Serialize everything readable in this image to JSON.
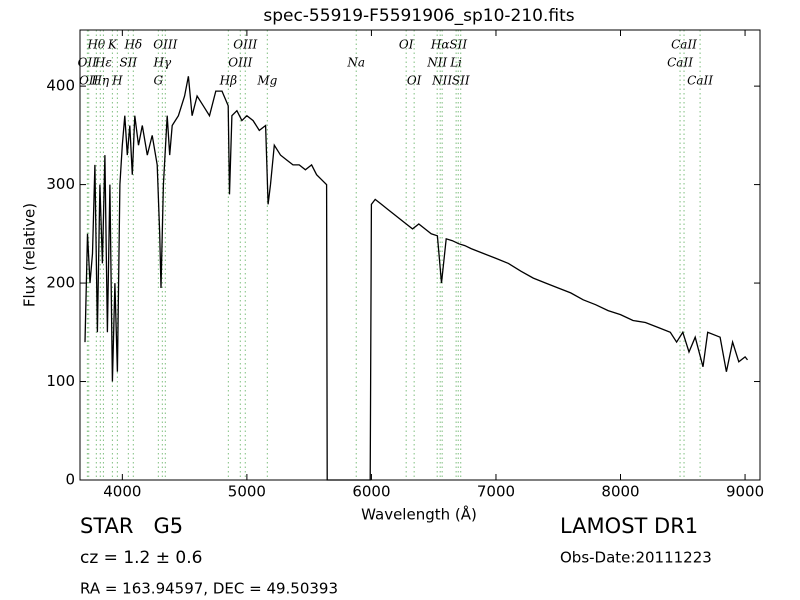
{
  "chart_data": {
    "type": "line",
    "title": "spec-55919-F5591906_sp10-210.fits",
    "x_label": "Wavelength (Å)",
    "y_label": "Flux (relative)",
    "color": "#000000",
    "line_color": "#7fbf7f",
    "xlim": [
      3660,
      9120
    ],
    "ylim": [
      0,
      457
    ],
    "xticks": [
      4000,
      5000,
      6000,
      7000,
      8000,
      9000
    ],
    "yticks": [
      0,
      100,
      200,
      300,
      400
    ],
    "x": [
      3700,
      3720,
      3740,
      3760,
      3780,
      3800,
      3820,
      3840,
      3860,
      3880,
      3900,
      3920,
      3940,
      3960,
      3980,
      4000,
      4020,
      4040,
      4060,
      4080,
      4100,
      4130,
      4160,
      4200,
      4240,
      4280,
      4300,
      4310,
      4330,
      4360,
      4380,
      4400,
      4450,
      4500,
      4530,
      4560,
      4600,
      4650,
      4700,
      4750,
      4800,
      4850,
      4860,
      4880,
      4920,
      4960,
      5000,
      5050,
      5100,
      5150,
      5170,
      5190,
      5220,
      5270,
      5320,
      5370,
      5420,
      5470,
      5520,
      5560,
      5600,
      5640,
      5645,
      5990,
      6000,
      6030,
      6080,
      6130,
      6180,
      6230,
      6280,
      6330,
      6380,
      6430,
      6480,
      6530,
      6563,
      6600,
      6650,
      6700,
      6750,
      6800,
      6900,
      7000,
      7100,
      7200,
      7300,
      7400,
      7500,
      7600,
      7700,
      7800,
      7900,
      8000,
      8100,
      8200,
      8300,
      8400,
      8450,
      8500,
      8550,
      8600,
      8662,
      8700,
      8800,
      8850,
      8900,
      8950,
      9000,
      9020
    ],
    "values": [
      140,
      250,
      200,
      230,
      320,
      150,
      300,
      220,
      330,
      150,
      300,
      100,
      200,
      110,
      300,
      340,
      370,
      330,
      360,
      310,
      370,
      340,
      360,
      330,
      350,
      320,
      250,
      195,
      300,
      370,
      330,
      360,
      370,
      390,
      410,
      370,
      390,
      380,
      370,
      395,
      395,
      380,
      290,
      370,
      375,
      365,
      370,
      365,
      355,
      360,
      280,
      300,
      340,
      330,
      325,
      320,
      320,
      315,
      320,
      310,
      305,
      300,
      0,
      0,
      280,
      285,
      280,
      275,
      270,
      265,
      260,
      255,
      260,
      255,
      250,
      248,
      200,
      245,
      243,
      240,
      238,
      235,
      230,
      225,
      220,
      212,
      205,
      200,
      195,
      190,
      183,
      178,
      172,
      168,
      162,
      160,
      155,
      150,
      140,
      150,
      130,
      145,
      115,
      150,
      145,
      110,
      140,
      120,
      125,
      122
    ],
    "line_labels": [
      [
        {
          "label": "Hθ",
          "x": 3791
        },
        {
          "label": "K",
          "x": 3920
        },
        {
          "label": "Hδ",
          "x": 4088
        },
        {
          "label": "OIII",
          "x": 4345
        },
        {
          "label": "OIII",
          "x": 4987
        },
        {
          "label": "OI",
          "x": 6279
        },
        {
          "label": "Hα",
          "x": 6552
        },
        {
          "label": "SII",
          "x": 6697
        },
        {
          "label": "CaII",
          "x": 8510
        }
      ],
      [
        {
          "label": "OII",
          "x": 3719
        },
        {
          "label": "Hε",
          "x": 3848
        },
        {
          "label": "SII",
          "x": 4048
        },
        {
          "label": "Hγ",
          "x": 4321
        },
        {
          "label": "OIII",
          "x": 4947
        },
        {
          "label": "Na",
          "x": 5878
        },
        {
          "label": "NII",
          "x": 6528
        },
        {
          "label": "Li",
          "x": 6680
        },
        {
          "label": "CaII",
          "x": 8478
        }
      ],
      [
        {
          "label": "OII",
          "x": 3730
        },
        {
          "label": "Hη",
          "x": 3823
        },
        {
          "label": "H",
          "x": 3960
        },
        {
          "label": "G",
          "x": 4289
        },
        {
          "label": "Hβ",
          "x": 4851
        },
        {
          "label": "Mg",
          "x": 5164
        },
        {
          "label": "OI",
          "x": 6343
        },
        {
          "label": "NII",
          "x": 6568
        },
        {
          "label": "SII",
          "x": 6717
        },
        {
          "label": "CaII",
          "x": 8639
        }
      ]
    ],
    "object": "STAR   G5",
    "cz": "cz = 1.2 ± 0.6",
    "coords": "RA = 163.94597, DEC = 49.50393",
    "survey": "LAMOST DR1",
    "obs_date": "Obs-Date:20111223"
  }
}
